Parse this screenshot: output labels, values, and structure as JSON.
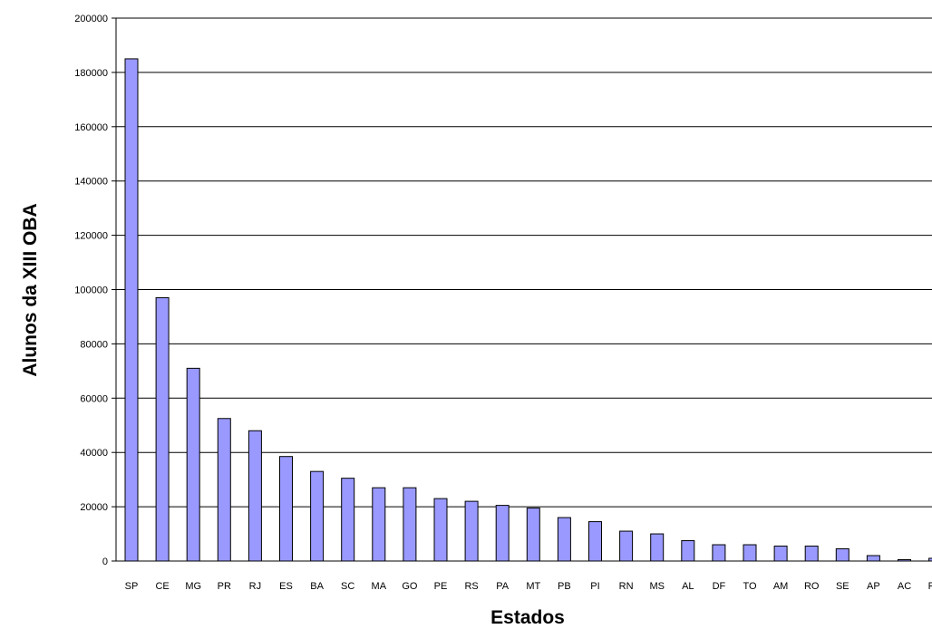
{
  "colors": {
    "bar_fill": "#9999ff",
    "bar_stroke": "#000000",
    "grid": "#000000",
    "background": "#ffffff"
  },
  "chart_data": {
    "type": "bar",
    "title": "",
    "xlabel": "Estados",
    "ylabel": "Alunos da XIII OBA",
    "ylim": [
      0,
      200000
    ],
    "yticks": [
      0,
      20000,
      40000,
      60000,
      80000,
      100000,
      120000,
      140000,
      160000,
      180000,
      200000
    ],
    "grid": true,
    "legend": "none",
    "categories": [
      "SP",
      "CE",
      "MG",
      "PR",
      "RJ",
      "ES",
      "BA",
      "SC",
      "MA",
      "GO",
      "PE",
      "RS",
      "PA",
      "MT",
      "PB",
      "PI",
      "RN",
      "MS",
      "AL",
      "DF",
      "TO",
      "AM",
      "RO",
      "SE",
      "AP",
      "AC",
      "RR"
    ],
    "values": [
      185000,
      97000,
      71000,
      52500,
      48000,
      38500,
      33000,
      30500,
      27000,
      27000,
      23000,
      22000,
      20500,
      19500,
      16000,
      14500,
      11000,
      10000,
      7500,
      6000,
      6000,
      5500,
      5500,
      4500,
      2000,
      500,
      1000
    ]
  }
}
